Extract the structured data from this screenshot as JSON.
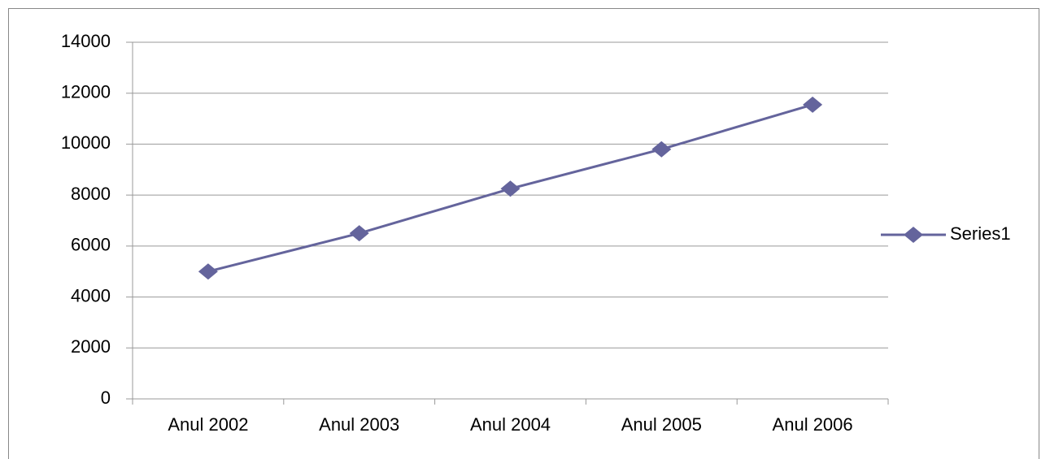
{
  "chart_data": {
    "type": "line",
    "categories": [
      "Anul 2002",
      "Anul 2003",
      "Anul 2004",
      "Anul 2005",
      "Anul 2006"
    ],
    "series": [
      {
        "name": "Series1",
        "color": "#64649c",
        "values": [
          5000,
          6500,
          8250,
          9800,
          11550
        ]
      }
    ],
    "ylim": [
      0,
      14000
    ],
    "yticks": [
      0,
      2000,
      4000,
      6000,
      8000,
      10000,
      12000,
      14000
    ],
    "grid": true,
    "legend": "right"
  }
}
